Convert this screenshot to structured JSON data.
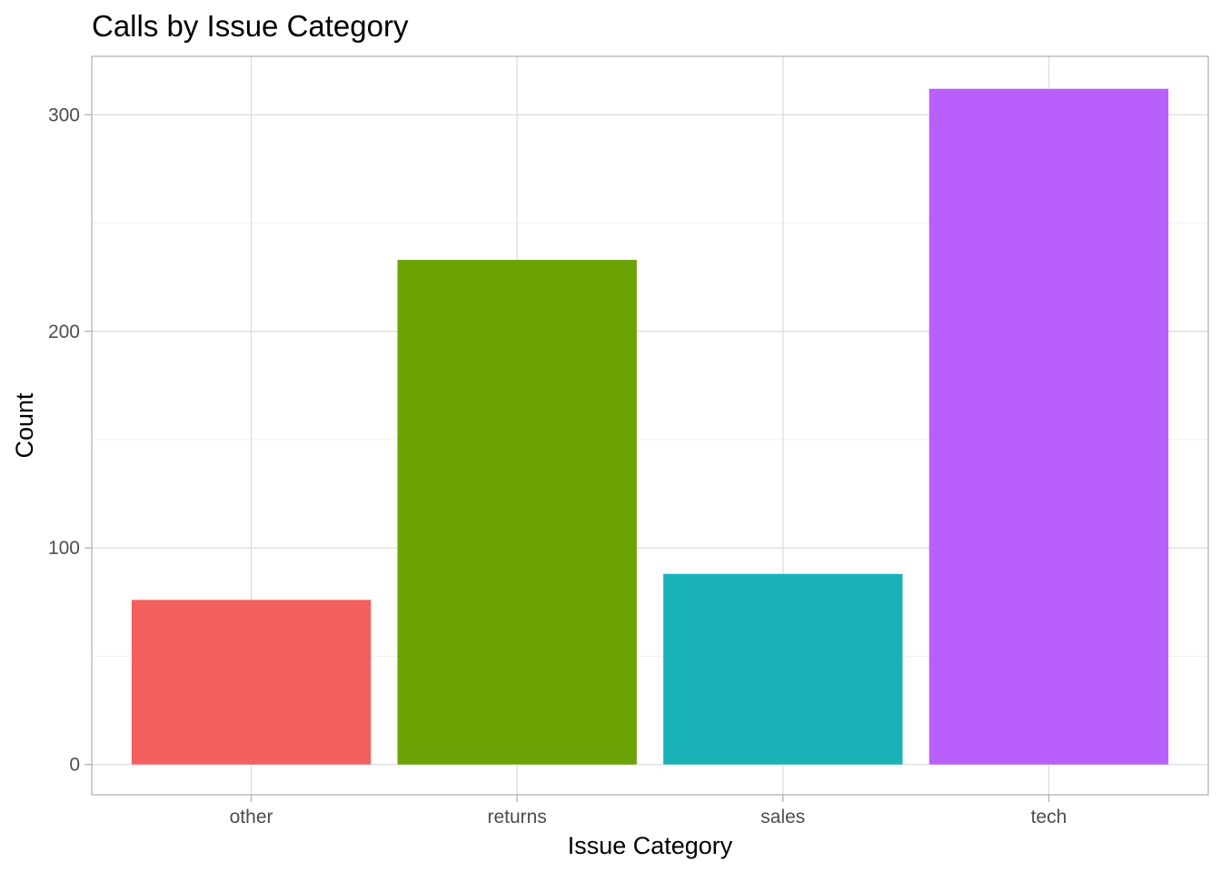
{
  "chart_data": {
    "type": "bar",
    "title": "Calls by Issue Category",
    "xlabel": "Issue Category",
    "ylabel": "Count",
    "categories": [
      "other",
      "returns",
      "sales",
      "tech"
    ],
    "values": [
      76,
      233,
      88,
      312
    ],
    "colors": [
      "#F25F5C",
      "#6BA304",
      "#19B3B7",
      "#B95FFC"
    ],
    "ylim": [
      -14,
      327
    ],
    "y_ticks": [
      0,
      100,
      200,
      300
    ],
    "y_tick_labels": [
      "0",
      "100",
      "200",
      "300"
    ],
    "y_minor_ticks": [
      50,
      150,
      250
    ],
    "grid": true,
    "legend": "none"
  }
}
